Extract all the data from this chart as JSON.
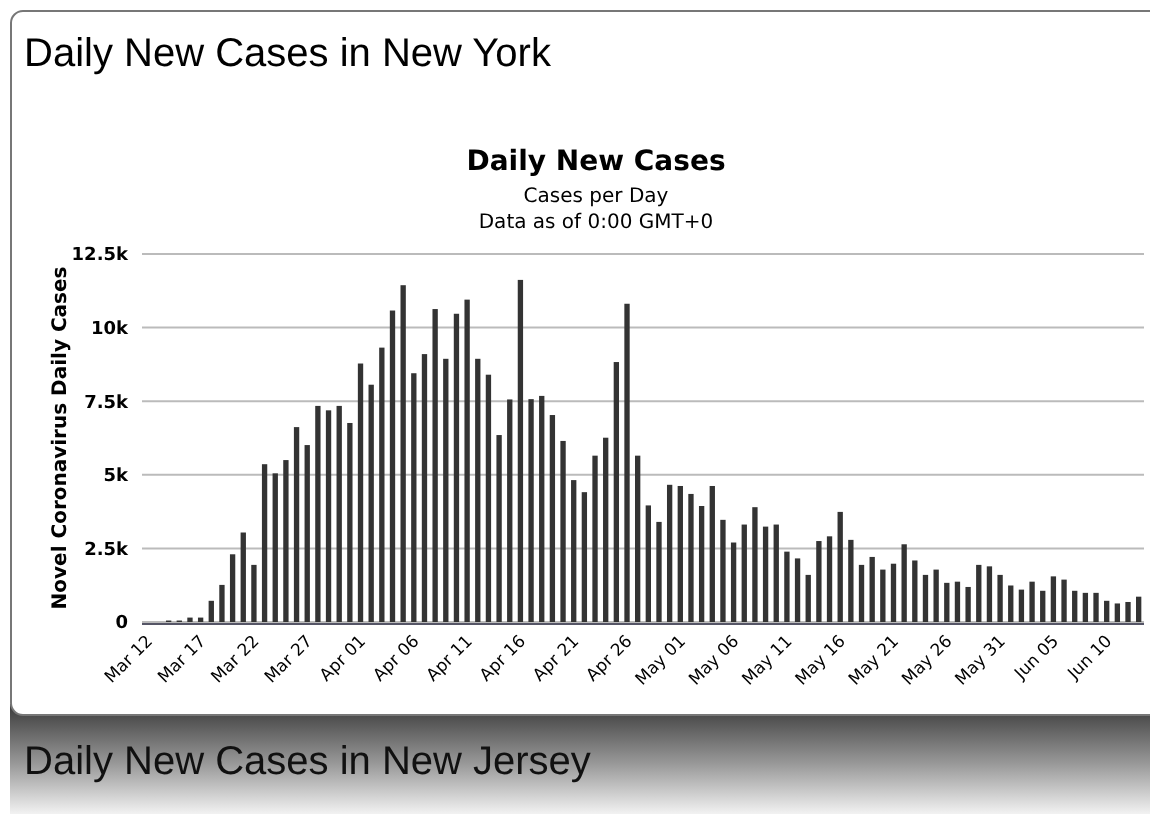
{
  "chart_data": {
    "type": "bar",
    "title": "Daily New Cases",
    "subtitle": "Cases per Day",
    "ylabel": "Novel Coronavirus Daily Cases",
    "annotations": [
      "Data as of 0:00 GMT+0",
      "Daily New Cases in New York",
      "Daily New Cases in New Jersey"
    ],
    "categories": [
      "Mar 12",
      null,
      null,
      null,
      null,
      "Mar 17",
      null,
      null,
      null,
      null,
      "Mar 22",
      null,
      null,
      null,
      null,
      "Mar 27",
      null,
      null,
      null,
      null,
      "Apr 01",
      null,
      null,
      null,
      null,
      "Apr 06",
      null,
      null,
      null,
      null,
      "Apr 11",
      null,
      null,
      null,
      null,
      "Apr 16",
      null,
      null,
      null,
      null,
      "Apr 21",
      null,
      null,
      null,
      null,
      "Apr 26",
      null,
      null,
      null,
      null,
      "May 01",
      null,
      null,
      null,
      null,
      "May 06",
      null,
      null,
      null,
      null,
      "May 11",
      null,
      null,
      null,
      null,
      "May 16",
      null,
      null,
      null,
      null,
      "May 21",
      null,
      null,
      null,
      null,
      "May 26",
      null,
      null,
      null,
      null,
      "May 31",
      null,
      null,
      null,
      null,
      "Jun 05",
      null,
      null,
      null,
      null,
      "Jun 10",
      null,
      null,
      null
    ],
    "values": [
      0,
      0,
      50,
      50,
      150,
      150,
      720,
      1260,
      2300,
      3040,
      1940,
      5360,
      5050,
      5500,
      6620,
      6010,
      7340,
      7190,
      7340,
      6760,
      8780,
      8060,
      9320,
      10580,
      11440,
      8450,
      9100,
      10630,
      8940,
      10470,
      10950,
      8940,
      8400,
      6350,
      7560,
      11620,
      7570,
      7680,
      7030,
      6150,
      4820,
      4410,
      5650,
      6260,
      8830,
      10810,
      5650,
      3960,
      3400,
      4660,
      4620,
      4350,
      3940,
      4620,
      3470,
      2700,
      3310,
      3900,
      3240,
      3310,
      2390,
      2160,
      1600,
      2750,
      2910,
      3740,
      2790,
      1940,
      2210,
      1780,
      1980,
      2640,
      2090,
      1600,
      1780,
      1330,
      1370,
      1190,
      1940,
      1890,
      1600,
      1240,
      1100,
      1370,
      1060,
      1550,
      1440,
      1060,
      990,
      990,
      720,
      630,
      680,
      860
    ],
    "color": "#333333",
    "ylim": [
      0,
      12500
    ],
    "yticks": [
      0,
      {
        "value": 2500,
        "label": "2.5k"
      },
      {
        "value": 5000,
        "label": "5k"
      },
      {
        "value": 7500,
        "label": "7.5k"
      },
      {
        "value": 10000,
        "label": "10k"
      },
      {
        "value": 12500,
        "label": "12.5k"
      }
    ],
    "grid": "y"
  }
}
